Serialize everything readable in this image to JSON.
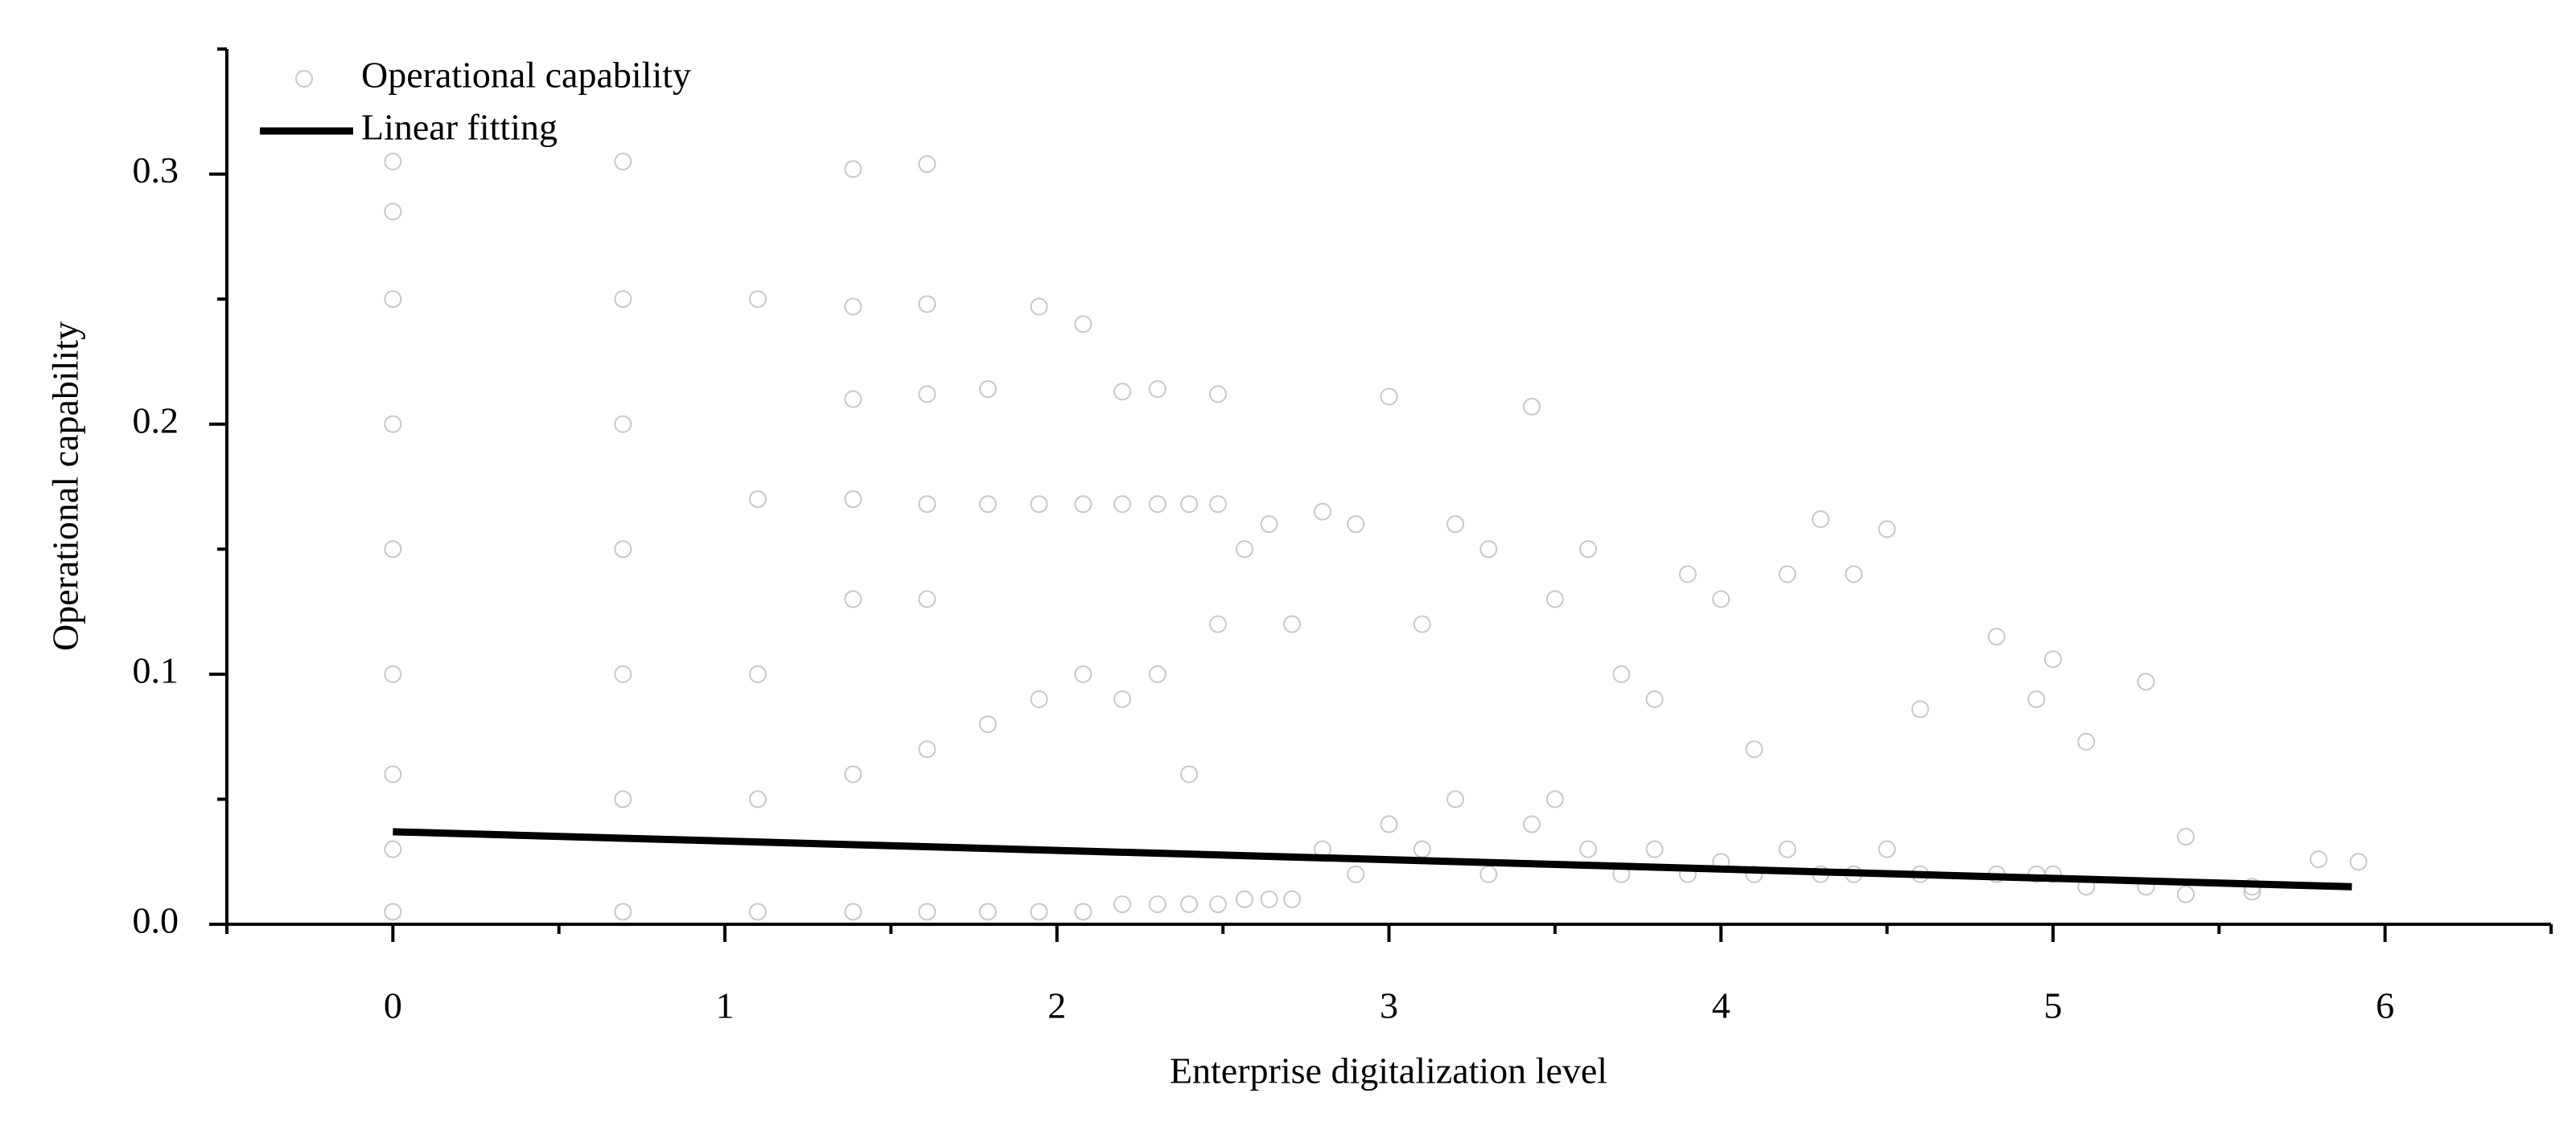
{
  "chart_data": {
    "type": "scatter",
    "xlabel": "Enterprise digitalization level",
    "ylabel": "Operational capability",
    "xlim": [
      -0.5,
      6.5
    ],
    "ylim": [
      0,
      0.35
    ],
    "xticks": [
      0,
      1,
      2,
      3,
      4,
      5,
      6
    ],
    "yticks": [
      {
        "value": 0,
        "label": "0.0"
      },
      0.1,
      0.2,
      0.3
    ],
    "xminorticks": [
      -0.5,
      0.5,
      1.5,
      2.5,
      3.5,
      4.5,
      5.5,
      6.5
    ],
    "yminorticks": [
      0.05,
      0.15,
      0.25,
      0.35
    ],
    "legend": "upper left",
    "series": [
      {
        "name": "Operational capability",
        "color": "#c8c8c8",
        "type": "scatter",
        "x": [
          0,
          0,
          0,
          0,
          0,
          0,
          0,
          0,
          0,
          0.693,
          0.693,
          0.693,
          0.693,
          0.693,
          0.693,
          0.693,
          1.099,
          1.099,
          1.099,
          1.099,
          1.099,
          1.386,
          1.386,
          1.386,
          1.386,
          1.386,
          1.386,
          1.386,
          1.609,
          1.609,
          1.609,
          1.609,
          1.609,
          1.609,
          1.609,
          1.792,
          1.792,
          1.792,
          1.792,
          1.946,
          1.946,
          1.946,
          1.946,
          2.079,
          2.079,
          2.079,
          2.079,
          2.197,
          2.197,
          2.197,
          2.197,
          2.303,
          2.303,
          2.303,
          2.303,
          2.398,
          2.398,
          2.398,
          2.485,
          2.485,
          2.485,
          2.485,
          2.565,
          2.565,
          2.639,
          2.639,
          2.708,
          2.708,
          2.8,
          2.8,
          2.9,
          2.9,
          3.0,
          3.0,
          3.1,
          3.1,
          3.2,
          3.2,
          3.3,
          3.3,
          3.43,
          3.43,
          3.5,
          3.5,
          3.6,
          3.6,
          3.7,
          3.7,
          3.8,
          3.8,
          3.9,
          3.9,
          4.0,
          4.0,
          4.1,
          4.1,
          4.2,
          4.2,
          4.3,
          4.3,
          4.4,
          4.4,
          4.5,
          4.5,
          4.6,
          4.6,
          4.83,
          4.83,
          4.95,
          4.95,
          5.0,
          5.0,
          5.1,
          5.1,
          5.28,
          5.28,
          5.4,
          5.4,
          5.6,
          5.6,
          5.8,
          5.92
        ],
        "values": [
          0.005,
          0.03,
          0.06,
          0.1,
          0.15,
          0.2,
          0.25,
          0.285,
          0.305,
          0.005,
          0.05,
          0.1,
          0.15,
          0.2,
          0.25,
          0.305,
          0.005,
          0.05,
          0.1,
          0.17,
          0.25,
          0.005,
          0.06,
          0.13,
          0.17,
          0.21,
          0.247,
          0.302,
          0.005,
          0.07,
          0.13,
          0.168,
          0.212,
          0.248,
          0.304,
          0.005,
          0.08,
          0.168,
          0.214,
          0.005,
          0.09,
          0.168,
          0.247,
          0.005,
          0.1,
          0.168,
          0.24,
          0.008,
          0.09,
          0.168,
          0.213,
          0.008,
          0.1,
          0.168,
          0.214,
          0.008,
          0.06,
          0.168,
          0.008,
          0.12,
          0.168,
          0.212,
          0.01,
          0.15,
          0.01,
          0.16,
          0.01,
          0.12,
          0.03,
          0.165,
          0.02,
          0.16,
          0.04,
          0.211,
          0.03,
          0.12,
          0.05,
          0.16,
          0.02,
          0.15,
          0.207,
          0.04,
          0.05,
          0.13,
          0.03,
          0.15,
          0.1,
          0.02,
          0.09,
          0.03,
          0.14,
          0.02,
          0.13,
          0.025,
          0.02,
          0.07,
          0.14,
          0.03,
          0.162,
          0.02,
          0.14,
          0.02,
          0.158,
          0.03,
          0.086,
          0.02,
          0.115,
          0.02,
          0.09,
          0.02,
          0.106,
          0.02,
          0.073,
          0.015,
          0.097,
          0.015,
          0.035,
          0.012,
          0.015,
          0.013,
          0.026,
          0.025
        ]
      },
      {
        "name": "Linear fitting",
        "color": "#000000",
        "type": "line",
        "x": [
          0,
          5.9
        ],
        "values": [
          0.037,
          0.015
        ]
      }
    ]
  }
}
